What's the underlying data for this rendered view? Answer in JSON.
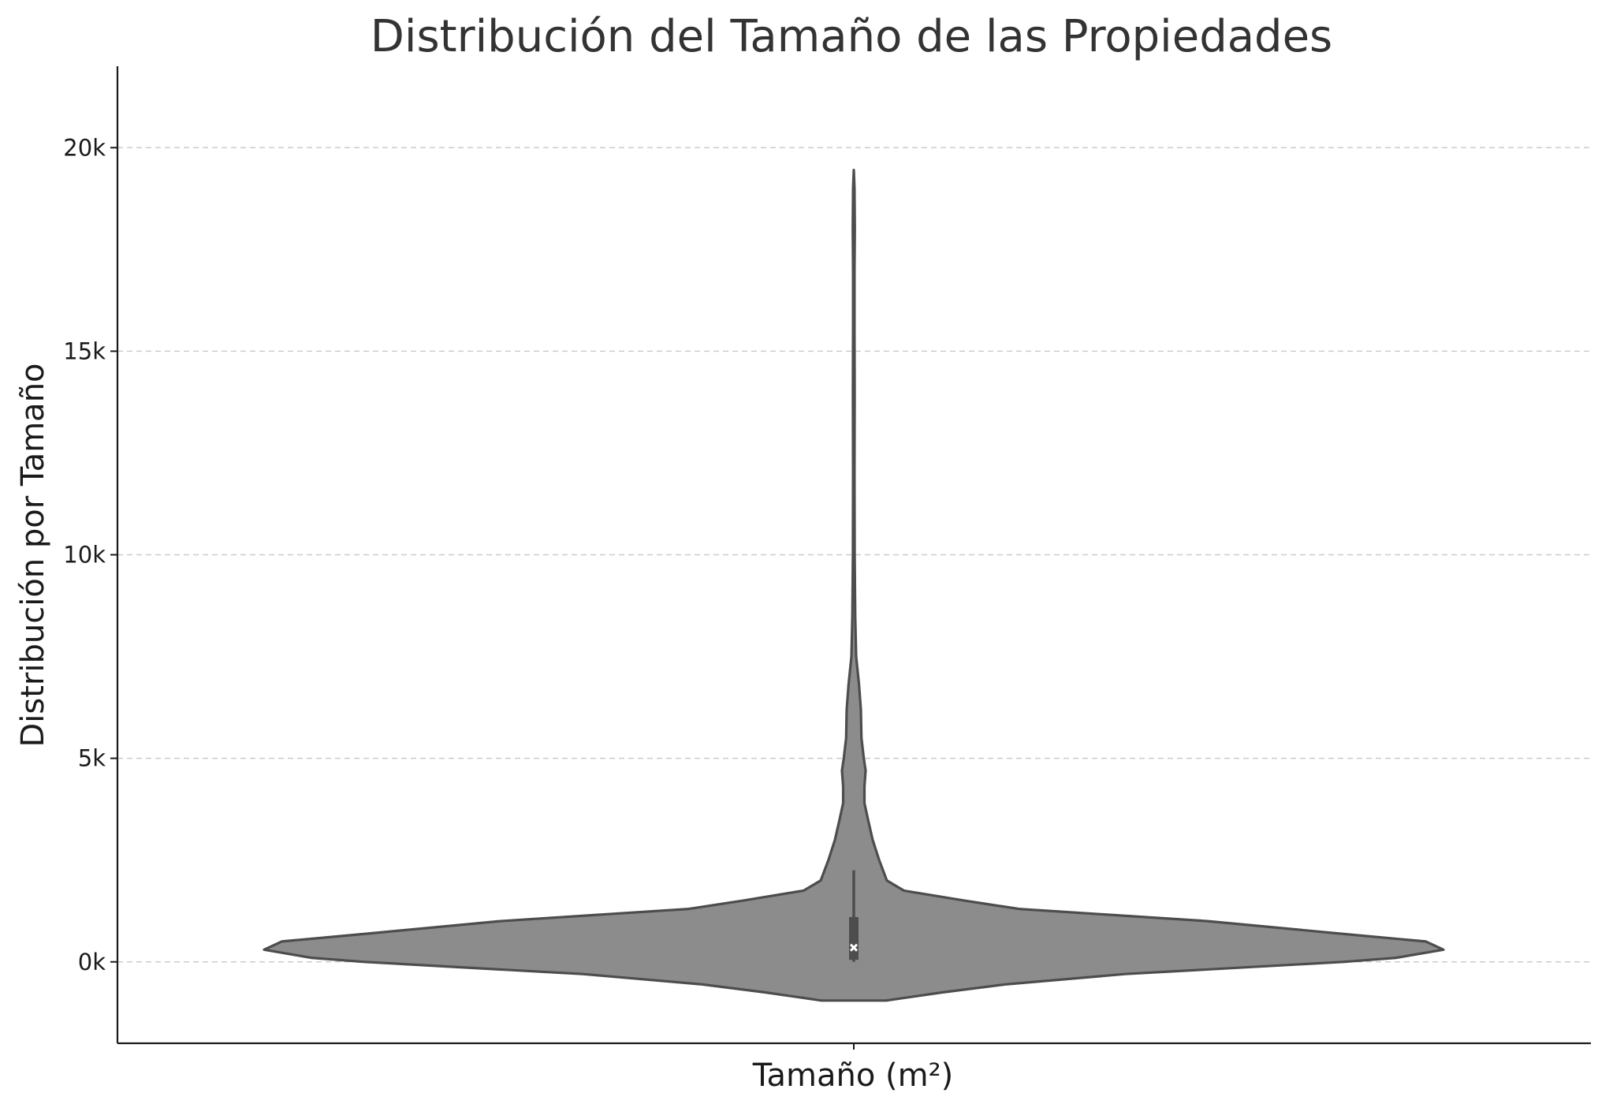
{
  "chart_data": {
    "type": "violin",
    "title": "Distribución del Tamaño de las Propiedades",
    "xlabel": "Tamaño (m²)",
    "ylabel": "Distribución por Tamaño",
    "ylim": [
      -2000,
      22000
    ],
    "yticks": [
      {
        "value": 0,
        "label": "0k"
      },
      {
        "value": 5000,
        "label": "5k"
      },
      {
        "value": 10000,
        "label": "10k"
      },
      {
        "value": 15000,
        "label": "15k"
      },
      {
        "value": 20000,
        "label": "20k"
      }
    ],
    "grid": "horizontal dashed",
    "colors": {
      "fill": "#8c8c8c",
      "outline": "#4d4d4d",
      "box": "#4d4d4d",
      "median": "#ffffff"
    },
    "violin": {
      "min_kde": -950,
      "max_kde": 19450,
      "profile": [
        [
          -950,
          0.055
        ],
        [
          -750,
          0.15
        ],
        [
          -550,
          0.26
        ],
        [
          -300,
          0.46
        ],
        [
          0,
          0.83
        ],
        [
          100,
          0.92
        ],
        [
          300,
          1.0
        ],
        [
          500,
          0.97
        ],
        [
          700,
          0.82
        ],
        [
          1000,
          0.6
        ],
        [
          1300,
          0.28
        ],
        [
          1500,
          0.19
        ],
        [
          1750,
          0.085
        ],
        [
          2000,
          0.056
        ],
        [
          2500,
          0.043
        ],
        [
          3000,
          0.032
        ],
        [
          3500,
          0.024
        ],
        [
          3900,
          0.018
        ],
        [
          4300,
          0.018
        ],
        [
          4700,
          0.02
        ],
        [
          5000,
          0.017
        ],
        [
          5500,
          0.013
        ],
        [
          6200,
          0.012
        ],
        [
          6800,
          0.009
        ],
        [
          7500,
          0.004
        ],
        [
          8500,
          0.0024
        ],
        [
          10000,
          0.0015
        ],
        [
          12000,
          0.0012
        ],
        [
          14000,
          0.0015
        ],
        [
          15500,
          0.0012
        ],
        [
          17000,
          0.0012
        ],
        [
          18000,
          0.0017
        ],
        [
          19000,
          0.0012
        ],
        [
          19450,
          0.0
        ]
      ],
      "q1": 50,
      "median": 350,
      "q3": 1100,
      "whisker_low": 0,
      "whisker_high": 2250
    }
  }
}
